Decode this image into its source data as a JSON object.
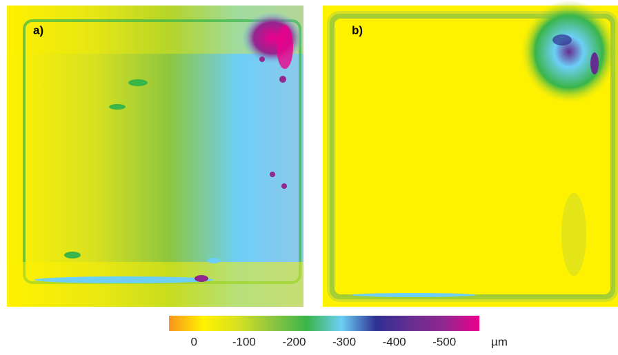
{
  "panels": [
    {
      "label": "a)"
    },
    {
      "label": "b)"
    }
  ],
  "colorbar": {
    "lim": [
      50,
      -570
    ],
    "ticks": [
      0,
      -100,
      -200,
      -300,
      -400,
      -500
    ],
    "unit": "µm",
    "colors": [
      "#f7941d",
      "#fff200",
      "#d7e021",
      "#8dc63f",
      "#39b54a",
      "#6dcff6",
      "#2e3192",
      "#662d91",
      "#92278f",
      "#ec008c"
    ]
  }
}
